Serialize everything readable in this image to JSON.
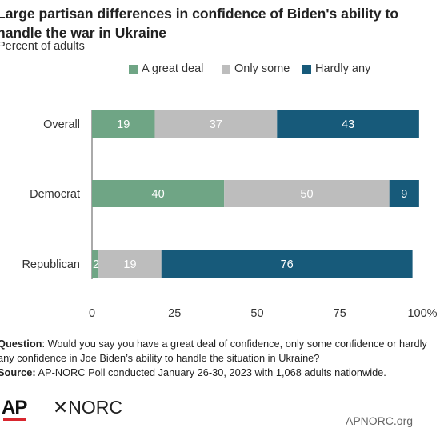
{
  "title": "Large partisan differences in confidence of Biden's ability to handle the war in Ukraine",
  "subtitle": "Percent of adults",
  "legend": [
    {
      "label": "A great deal",
      "color": "#6fa585"
    },
    {
      "label": "Only some",
      "color": "#bdbdbd"
    },
    {
      "label": "Hardly any",
      "color": "#175a7a"
    }
  ],
  "chart_data": {
    "type": "bar",
    "orientation": "horizontal",
    "stacked": true,
    "categories": [
      "Overall",
      "Democrat",
      "Republican"
    ],
    "series": [
      {
        "name": "A great deal",
        "values": [
          19,
          40,
          2
        ],
        "color": "#6fa585"
      },
      {
        "name": "Only some",
        "values": [
          37,
          50,
          19
        ],
        "color": "#bdbdbd"
      },
      {
        "name": "Hardly any",
        "values": [
          43,
          9,
          76
        ],
        "color": "#175a7a"
      }
    ],
    "xlim": [
      0,
      100
    ],
    "xticks": [
      "0",
      "25",
      "50",
      "75",
      "100%"
    ],
    "xtick_values": [
      0,
      25,
      50,
      75,
      100
    ],
    "legend_position": "top",
    "grid": false
  },
  "footnote": {
    "question_label": "Question",
    "question_text": ": Would you say you have a great deal of confidence, only some confidence or hardly any confidence in Joe Biden’s ability to handle the situation in Ukraine?",
    "source_label": "Source:",
    "source_text": " AP-NORC Poll conducted January 26-30, 2023 with 1,068 adults nationwide."
  },
  "logos": {
    "ap": "AP",
    "norc": "✕NORC"
  },
  "site": "APNORC.org"
}
